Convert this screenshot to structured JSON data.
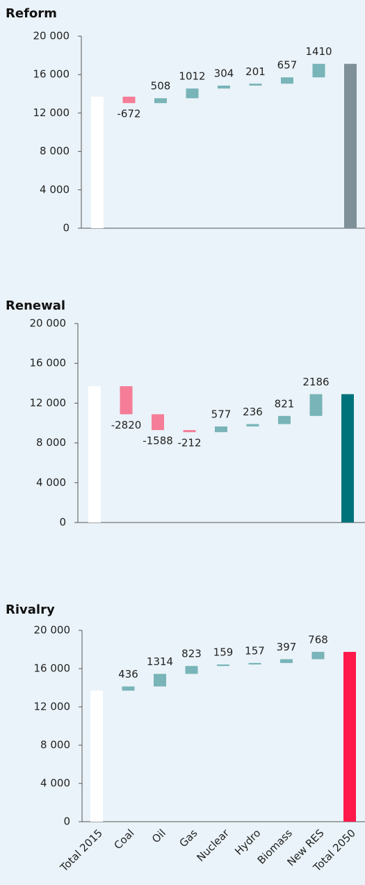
{
  "chart_data": [
    {
      "type": "waterfall",
      "title": "Reform",
      "values": [
        13700,
        -672,
        508,
        1012,
        304,
        201,
        657,
        1410,
        17120
      ],
      "ylim": [
        0,
        20000
      ],
      "yticks": [
        0,
        {
          "value": 4000,
          "label": "4 000"
        },
        {
          "value": 8000,
          "label": "8 000"
        },
        {
          "value": 12000,
          "label": "12 000"
        },
        {
          "value": 16000,
          "label": "16 000"
        },
        {
          "value": 20000,
          "label": "20 000"
        }
      ],
      "colors": {
        "start": "#ffffff",
        "increase": "#78b4b8",
        "decrease": "#f57d97",
        "end": "#7f9098"
      }
    },
    {
      "type": "waterfall",
      "title": "Renewal",
      "values": [
        13700,
        -2820,
        -1588,
        -212,
        577,
        236,
        821,
        2186,
        12900
      ],
      "ylim": [
        0,
        20000
      ],
      "yticks": [
        0,
        {
          "value": 4000,
          "label": "4 000"
        },
        {
          "value": 8000,
          "label": "8 000"
        },
        {
          "value": 12000,
          "label": "12 000"
        },
        {
          "value": 16000,
          "label": "16 000"
        },
        {
          "value": 20000,
          "label": "20 000"
        }
      ],
      "colors": {
        "start": "#ffffff",
        "increase": "#78b4b8",
        "decrease": "#f57d97",
        "end": "#00727a"
      }
    },
    {
      "type": "waterfall",
      "title": "Rivalry",
      "categories": [
        "Total 2015",
        "Coal",
        "Oil",
        "Gas",
        "Nuclear",
        "Hydro",
        "Biomass",
        "New RES",
        "Total 2050"
      ],
      "values": [
        13700,
        436,
        1314,
        823,
        159,
        157,
        397,
        768,
        17750
      ],
      "ylim": [
        0,
        20000
      ],
      "yticks": [
        0,
        {
          "value": 4000,
          "label": "4 000"
        },
        {
          "value": 8000,
          "label": "8 000"
        },
        {
          "value": 12000,
          "label": "12 000"
        },
        {
          "value": 16000,
          "label": "16 000"
        },
        {
          "value": 20000,
          "label": "20 000"
        }
      ],
      "colors": {
        "start": "#ffffff",
        "increase": "#78b4b8",
        "decrease": "#f57d97",
        "end": "#ff1a4b"
      }
    }
  ]
}
